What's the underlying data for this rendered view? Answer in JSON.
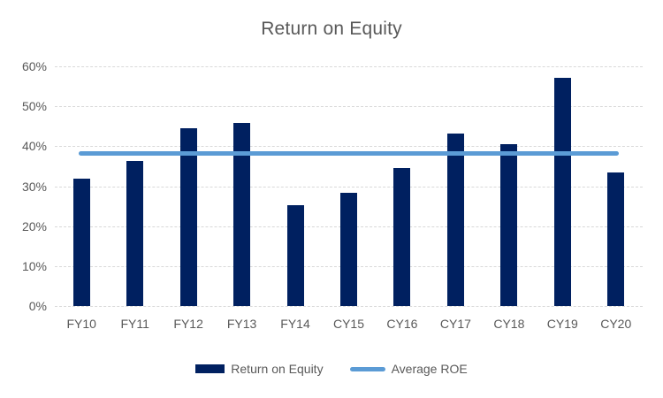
{
  "chart_data": {
    "type": "bar",
    "title": "Return on Equity",
    "categories": [
      "FY10",
      "FY11",
      "FY12",
      "FY13",
      "FY14",
      "CY15",
      "CY16",
      "CY17",
      "CY18",
      "CY19",
      "CY20"
    ],
    "series": [
      {
        "name": "Return on Equity",
        "kind": "bar",
        "color": "#002060",
        "values": [
          31.8,
          36.3,
          44.5,
          45.8,
          25.3,
          28.3,
          34.6,
          43.1,
          40.6,
          57.1,
          33.4
        ]
      },
      {
        "name": "Average ROE",
        "kind": "line",
        "color": "#5B9BD5",
        "value": 38.3
      }
    ],
    "y_axis": {
      "min": 0,
      "max": 60,
      "step": 10,
      "tick_labels": [
        "0%",
        "10%",
        "20%",
        "30%",
        "40%",
        "50%",
        "60%"
      ]
    },
    "grid": true,
    "gridline_color": "#d9d9d9",
    "text_color": "#595959",
    "legend_position": "bottom"
  }
}
